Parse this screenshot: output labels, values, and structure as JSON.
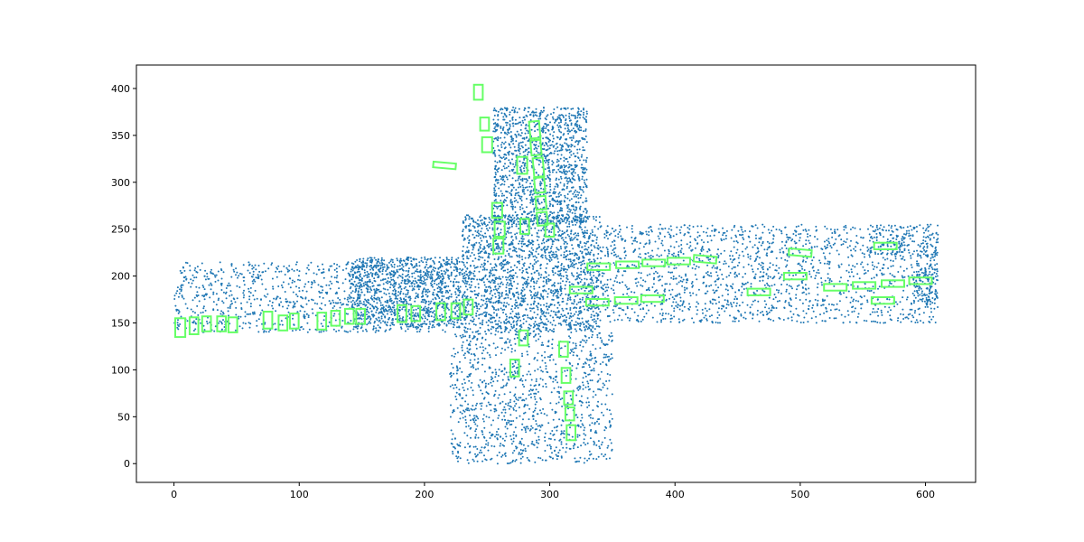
{
  "colors": {
    "background": "#ffffff",
    "points": "#1f77b4",
    "boxes": "#66ff66",
    "axes": "#000000"
  },
  "chart_data": {
    "type": "scatter",
    "title": "",
    "xlabel": "",
    "ylabel": "",
    "xlim": [
      -30,
      640
    ],
    "ylim": [
      -20,
      425
    ],
    "grid": false,
    "legend": "none",
    "x_ticks": [
      0,
      100,
      200,
      300,
      400,
      500,
      600
    ],
    "y_ticks": [
      0,
      50,
      100,
      150,
      200,
      250,
      300,
      350,
      400
    ],
    "x_tick_labels": [
      "0",
      "100",
      "200",
      "300",
      "400",
      "500",
      "600"
    ],
    "y_tick_labels": [
      "0",
      "50",
      "100",
      "150",
      "200",
      "250",
      "300",
      "350",
      "400"
    ],
    "series": [
      {
        "kind": "point-cloud",
        "marker": "dot",
        "regions": [
          {
            "x": [
              0,
              220
            ],
            "y": [
              140,
              215
            ],
            "density": "medium"
          },
          {
            "x": [
              140,
              230
            ],
            "y": [
              145,
              220
            ],
            "density": "high"
          },
          {
            "x": [
              230,
              340
            ],
            "y": [
              140,
              265
            ],
            "density": "high"
          },
          {
            "x": [
              340,
              610
            ],
            "y": [
              150,
              255
            ],
            "density": "medium"
          },
          {
            "x": [
              255,
              330
            ],
            "y": [
              255,
              380
            ],
            "density": "high"
          },
          {
            "x": [
              220,
              350
            ],
            "y": [
              0,
              140
            ],
            "density": "medium"
          },
          {
            "x": [
              555,
              610
            ],
            "y": [
              220,
              255
            ],
            "density": "medium"
          },
          {
            "x": [
              590,
              610
            ],
            "y": [
              170,
              210
            ],
            "density": "high"
          }
        ]
      },
      {
        "kind": "bounding-boxes",
        "boxes": [
          {
            "cx": 243,
            "cy": 396,
            "w": 7,
            "h": 16,
            "angle": 0
          },
          {
            "cx": 248,
            "cy": 362,
            "w": 7,
            "h": 14,
            "angle": 0
          },
          {
            "cx": 250,
            "cy": 340,
            "w": 8,
            "h": 16,
            "angle": 0
          },
          {
            "cx": 288,
            "cy": 356,
            "w": 8,
            "h": 18,
            "angle": 5
          },
          {
            "cx": 289,
            "cy": 337,
            "w": 8,
            "h": 16,
            "angle": 5
          },
          {
            "cx": 291,
            "cy": 316,
            "w": 8,
            "h": 20,
            "angle": 5
          },
          {
            "cx": 292,
            "cy": 297,
            "w": 8,
            "h": 16,
            "angle": 5
          },
          {
            "cx": 293,
            "cy": 278,
            "w": 8,
            "h": 14,
            "angle": 5
          },
          {
            "cx": 294,
            "cy": 261,
            "w": 8,
            "h": 14,
            "angle": 5
          },
          {
            "cx": 278,
            "cy": 318,
            "w": 8,
            "h": 18,
            "angle": 0
          },
          {
            "cx": 258,
            "cy": 270,
            "w": 8,
            "h": 16,
            "angle": 0
          },
          {
            "cx": 260,
            "cy": 250,
            "w": 8,
            "h": 16,
            "angle": 0
          },
          {
            "cx": 259,
            "cy": 232,
            "w": 8,
            "h": 16,
            "angle": 0
          },
          {
            "cx": 280,
            "cy": 253,
            "w": 7,
            "h": 16,
            "angle": 0
          },
          {
            "cx": 300,
            "cy": 249,
            "w": 7,
            "h": 14,
            "angle": 0
          },
          {
            "cx": 216,
            "cy": 318,
            "w": 18,
            "h": 6,
            "angle": -5
          },
          {
            "cx": 5,
            "cy": 145,
            "w": 8,
            "h": 20,
            "angle": 0
          },
          {
            "cx": 16,
            "cy": 147,
            "w": 7,
            "h": 18,
            "angle": 0
          },
          {
            "cx": 26,
            "cy": 149,
            "w": 7,
            "h": 16,
            "angle": 0
          },
          {
            "cx": 38,
            "cy": 149,
            "w": 7,
            "h": 16,
            "angle": 0
          },
          {
            "cx": 47,
            "cy": 148,
            "w": 7,
            "h": 16,
            "angle": 0
          },
          {
            "cx": 75,
            "cy": 153,
            "w": 7,
            "h": 18,
            "angle": 0
          },
          {
            "cx": 87,
            "cy": 150,
            "w": 7,
            "h": 16,
            "angle": 0
          },
          {
            "cx": 96,
            "cy": 152,
            "w": 7,
            "h": 16,
            "angle": 0
          },
          {
            "cx": 118,
            "cy": 152,
            "w": 7,
            "h": 18,
            "angle": 0
          },
          {
            "cx": 129,
            "cy": 155,
            "w": 7,
            "h": 16,
            "angle": 0
          },
          {
            "cx": 140,
            "cy": 157,
            "w": 7,
            "h": 16,
            "angle": 0
          },
          {
            "cx": 149,
            "cy": 157,
            "w": 7,
            "h": 16,
            "angle": 0
          },
          {
            "cx": 182,
            "cy": 160,
            "w": 7,
            "h": 18,
            "angle": 0
          },
          {
            "cx": 193,
            "cy": 160,
            "w": 7,
            "h": 16,
            "angle": 0
          },
          {
            "cx": 213,
            "cy": 162,
            "w": 7,
            "h": 18,
            "angle": 0
          },
          {
            "cx": 225,
            "cy": 163,
            "w": 7,
            "h": 16,
            "angle": 0
          },
          {
            "cx": 235,
            "cy": 167,
            "w": 7,
            "h": 16,
            "angle": 0
          },
          {
            "cx": 339,
            "cy": 210,
            "w": 18,
            "h": 7,
            "angle": 0
          },
          {
            "cx": 362,
            "cy": 212,
            "w": 18,
            "h": 7,
            "angle": 0
          },
          {
            "cx": 383,
            "cy": 214,
            "w": 18,
            "h": 7,
            "angle": 0
          },
          {
            "cx": 403,
            "cy": 216,
            "w": 18,
            "h": 7,
            "angle": 0
          },
          {
            "cx": 424,
            "cy": 218,
            "w": 18,
            "h": 7,
            "angle": -5
          },
          {
            "cx": 325,
            "cy": 185,
            "w": 18,
            "h": 7,
            "angle": 0
          },
          {
            "cx": 338,
            "cy": 172,
            "w": 18,
            "h": 7,
            "angle": 0
          },
          {
            "cx": 361,
            "cy": 174,
            "w": 18,
            "h": 7,
            "angle": 0
          },
          {
            "cx": 382,
            "cy": 176,
            "w": 18,
            "h": 7,
            "angle": 0
          },
          {
            "cx": 467,
            "cy": 183,
            "w": 18,
            "h": 7,
            "angle": 0
          },
          {
            "cx": 500,
            "cy": 225,
            "w": 18,
            "h": 7,
            "angle": -5
          },
          {
            "cx": 496,
            "cy": 200,
            "w": 18,
            "h": 7,
            "angle": 0
          },
          {
            "cx": 528,
            "cy": 188,
            "w": 18,
            "h": 7,
            "angle": 0
          },
          {
            "cx": 551,
            "cy": 190,
            "w": 18,
            "h": 7,
            "angle": 0
          },
          {
            "cx": 574,
            "cy": 192,
            "w": 18,
            "h": 7,
            "angle": 0
          },
          {
            "cx": 596,
            "cy": 195,
            "w": 18,
            "h": 7,
            "angle": 0
          },
          {
            "cx": 568,
            "cy": 232,
            "w": 18,
            "h": 7,
            "angle": 0
          },
          {
            "cx": 566,
            "cy": 174,
            "w": 18,
            "h": 7,
            "angle": 0
          },
          {
            "cx": 279,
            "cy": 134,
            "w": 7,
            "h": 16,
            "angle": 0
          },
          {
            "cx": 311,
            "cy": 122,
            "w": 7,
            "h": 16,
            "angle": 0
          },
          {
            "cx": 272,
            "cy": 102,
            "w": 7,
            "h": 18,
            "angle": 0
          },
          {
            "cx": 313,
            "cy": 94,
            "w": 7,
            "h": 16,
            "angle": 0
          },
          {
            "cx": 315,
            "cy": 70,
            "w": 7,
            "h": 14,
            "angle": 0
          },
          {
            "cx": 316,
            "cy": 53,
            "w": 7,
            "h": 14,
            "angle": 0
          },
          {
            "cx": 317,
            "cy": 33,
            "w": 7,
            "h": 16,
            "angle": 0
          }
        ]
      }
    ]
  }
}
